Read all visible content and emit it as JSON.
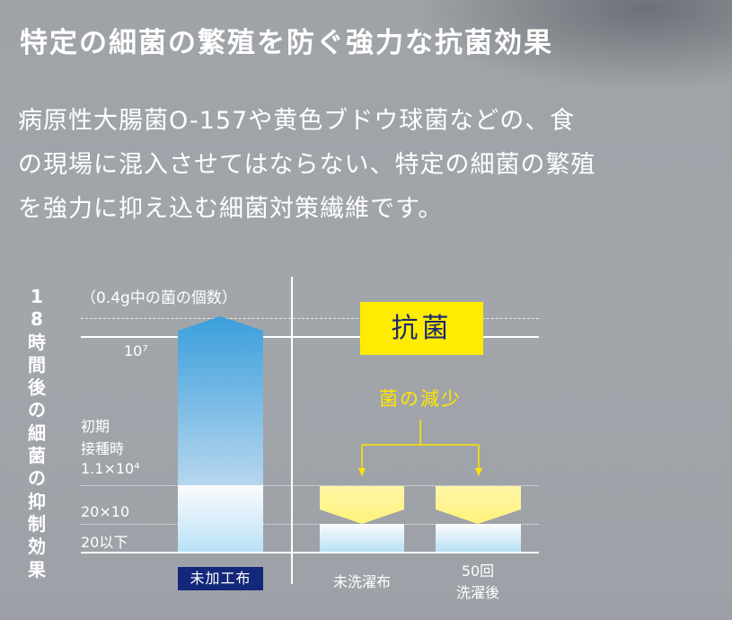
{
  "title": "特定の細菌の繁殖を防ぐ強力な抗菌効果",
  "body_lines": [
    "病原性大腸菌O-157や黄色ブドウ球菌などの、食",
    "の現場に混入させてはならない、特定の細菌の繁殖",
    "を強力に抑え込む細菌対策繊維です。"
  ],
  "chart_data": {
    "type": "bar",
    "title": "18時間後の細菌の抑制効果",
    "unit_note": "（0.4g中の菌の個数）",
    "y_scale": "log",
    "y_ticks": [
      "10⁷",
      "1.1×10⁴",
      "20×10",
      "20以下"
    ],
    "initial_label": [
      "初期",
      "接種時"
    ],
    "categories": [
      "未加工布",
      "未洗濯布",
      "50回洗濯後"
    ],
    "category_lines": [
      [
        "未加工布"
      ],
      [
        "未洗濯布"
      ],
      [
        "50回",
        "洗濯後"
      ]
    ],
    "values": [
      10000000,
      20,
      20
    ],
    "antibacterial_badge": "抗菌",
    "reduction_label": "菌の減少",
    "colors": {
      "untreated": "#3a9fdc",
      "reduction": "#fff27a",
      "badge": "#ffec00",
      "badge_text": "#1a2a6e",
      "category_box": "#13287a",
      "reduction_text": "#ffe600"
    }
  }
}
